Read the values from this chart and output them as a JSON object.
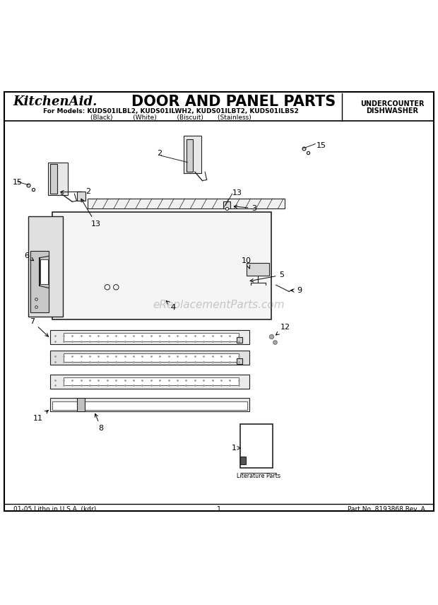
{
  "title_brand": "KitchenAid.",
  "title_main": "DOOR AND PANEL PARTS",
  "subtitle_line1": "For Models: KUDS01ILBL2, KUDS01ILWH2, KUDS01ILBT2, KUDS01ILBS2",
  "subtitle_line2": "(Black)          (White)          (Biscuit)       (Stainless)",
  "top_right_line1": "UNDERCOUNTER",
  "top_right_line2": "DISHWASHER",
  "footer_left": "01-05 Litho in U.S.A. (kdr)",
  "footer_center": "1",
  "footer_right": "Part No. 8193868 Rev. A",
  "watermark": "eReplacementParts.com",
  "literature_label": "Literature Parts",
  "bg_color": "#ffffff",
  "border_color": "#000000",
  "text_color": "#000000",
  "diagram_color": "#222222"
}
